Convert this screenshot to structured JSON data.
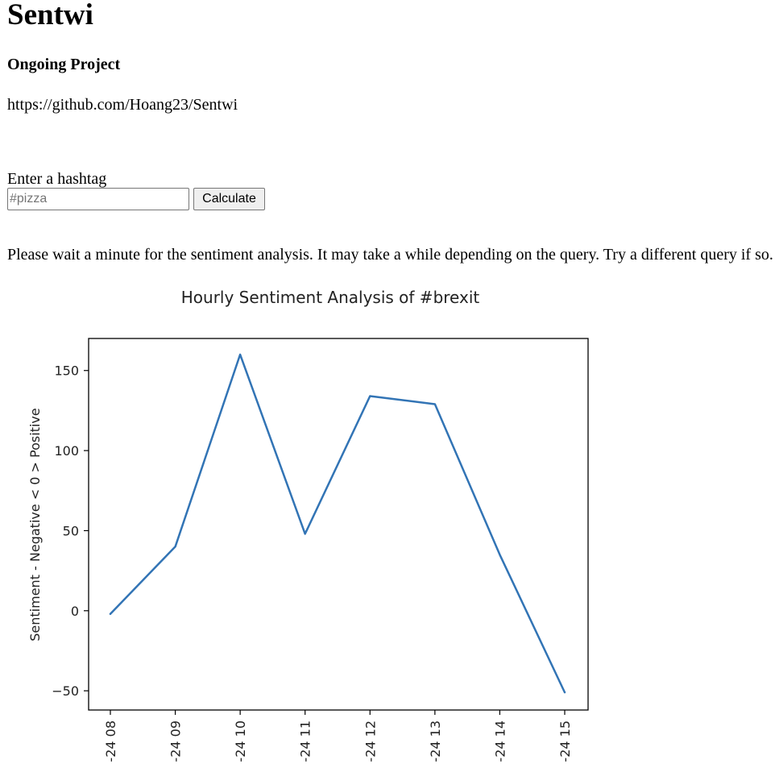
{
  "page": {
    "title": "Sentwi",
    "subtitle": "Ongoing Project",
    "repo_url": "https://github.com/Hoang23/Sentwi"
  },
  "form": {
    "label": "Enter a hashtag",
    "input_placeholder": "#pizza",
    "input_value": "",
    "button_label": "Calculate"
  },
  "notice": "Please wait a minute for the sentiment analysis. It may take a while depending on the query. Try a different query if so.",
  "chart_data": {
    "type": "line",
    "title": "Hourly Sentiment Analysis of #brexit",
    "xlabel": "",
    "ylabel": "Sentiment - Negative < 0 > Positive",
    "x": [
      "24 08",
      "24 09",
      "24 10",
      "24 11",
      "24 12",
      "24 13",
      "24 14",
      "24 15"
    ],
    "x_tick_labels": [
      "-24 08",
      "-24 09",
      "-24 10",
      "-24 11",
      "-24 12",
      "-24 13",
      "-24 14",
      "-24 15"
    ],
    "series": [
      {
        "values": [
          -2,
          40,
          160,
          48,
          134,
          129,
          35,
          -51
        ],
        "color": "#3274b5"
      }
    ],
    "yticks": [
      -50,
      0,
      50,
      100,
      150
    ],
    "ylim": [
      -62,
      170
    ],
    "grid": false,
    "legend": "none"
  }
}
